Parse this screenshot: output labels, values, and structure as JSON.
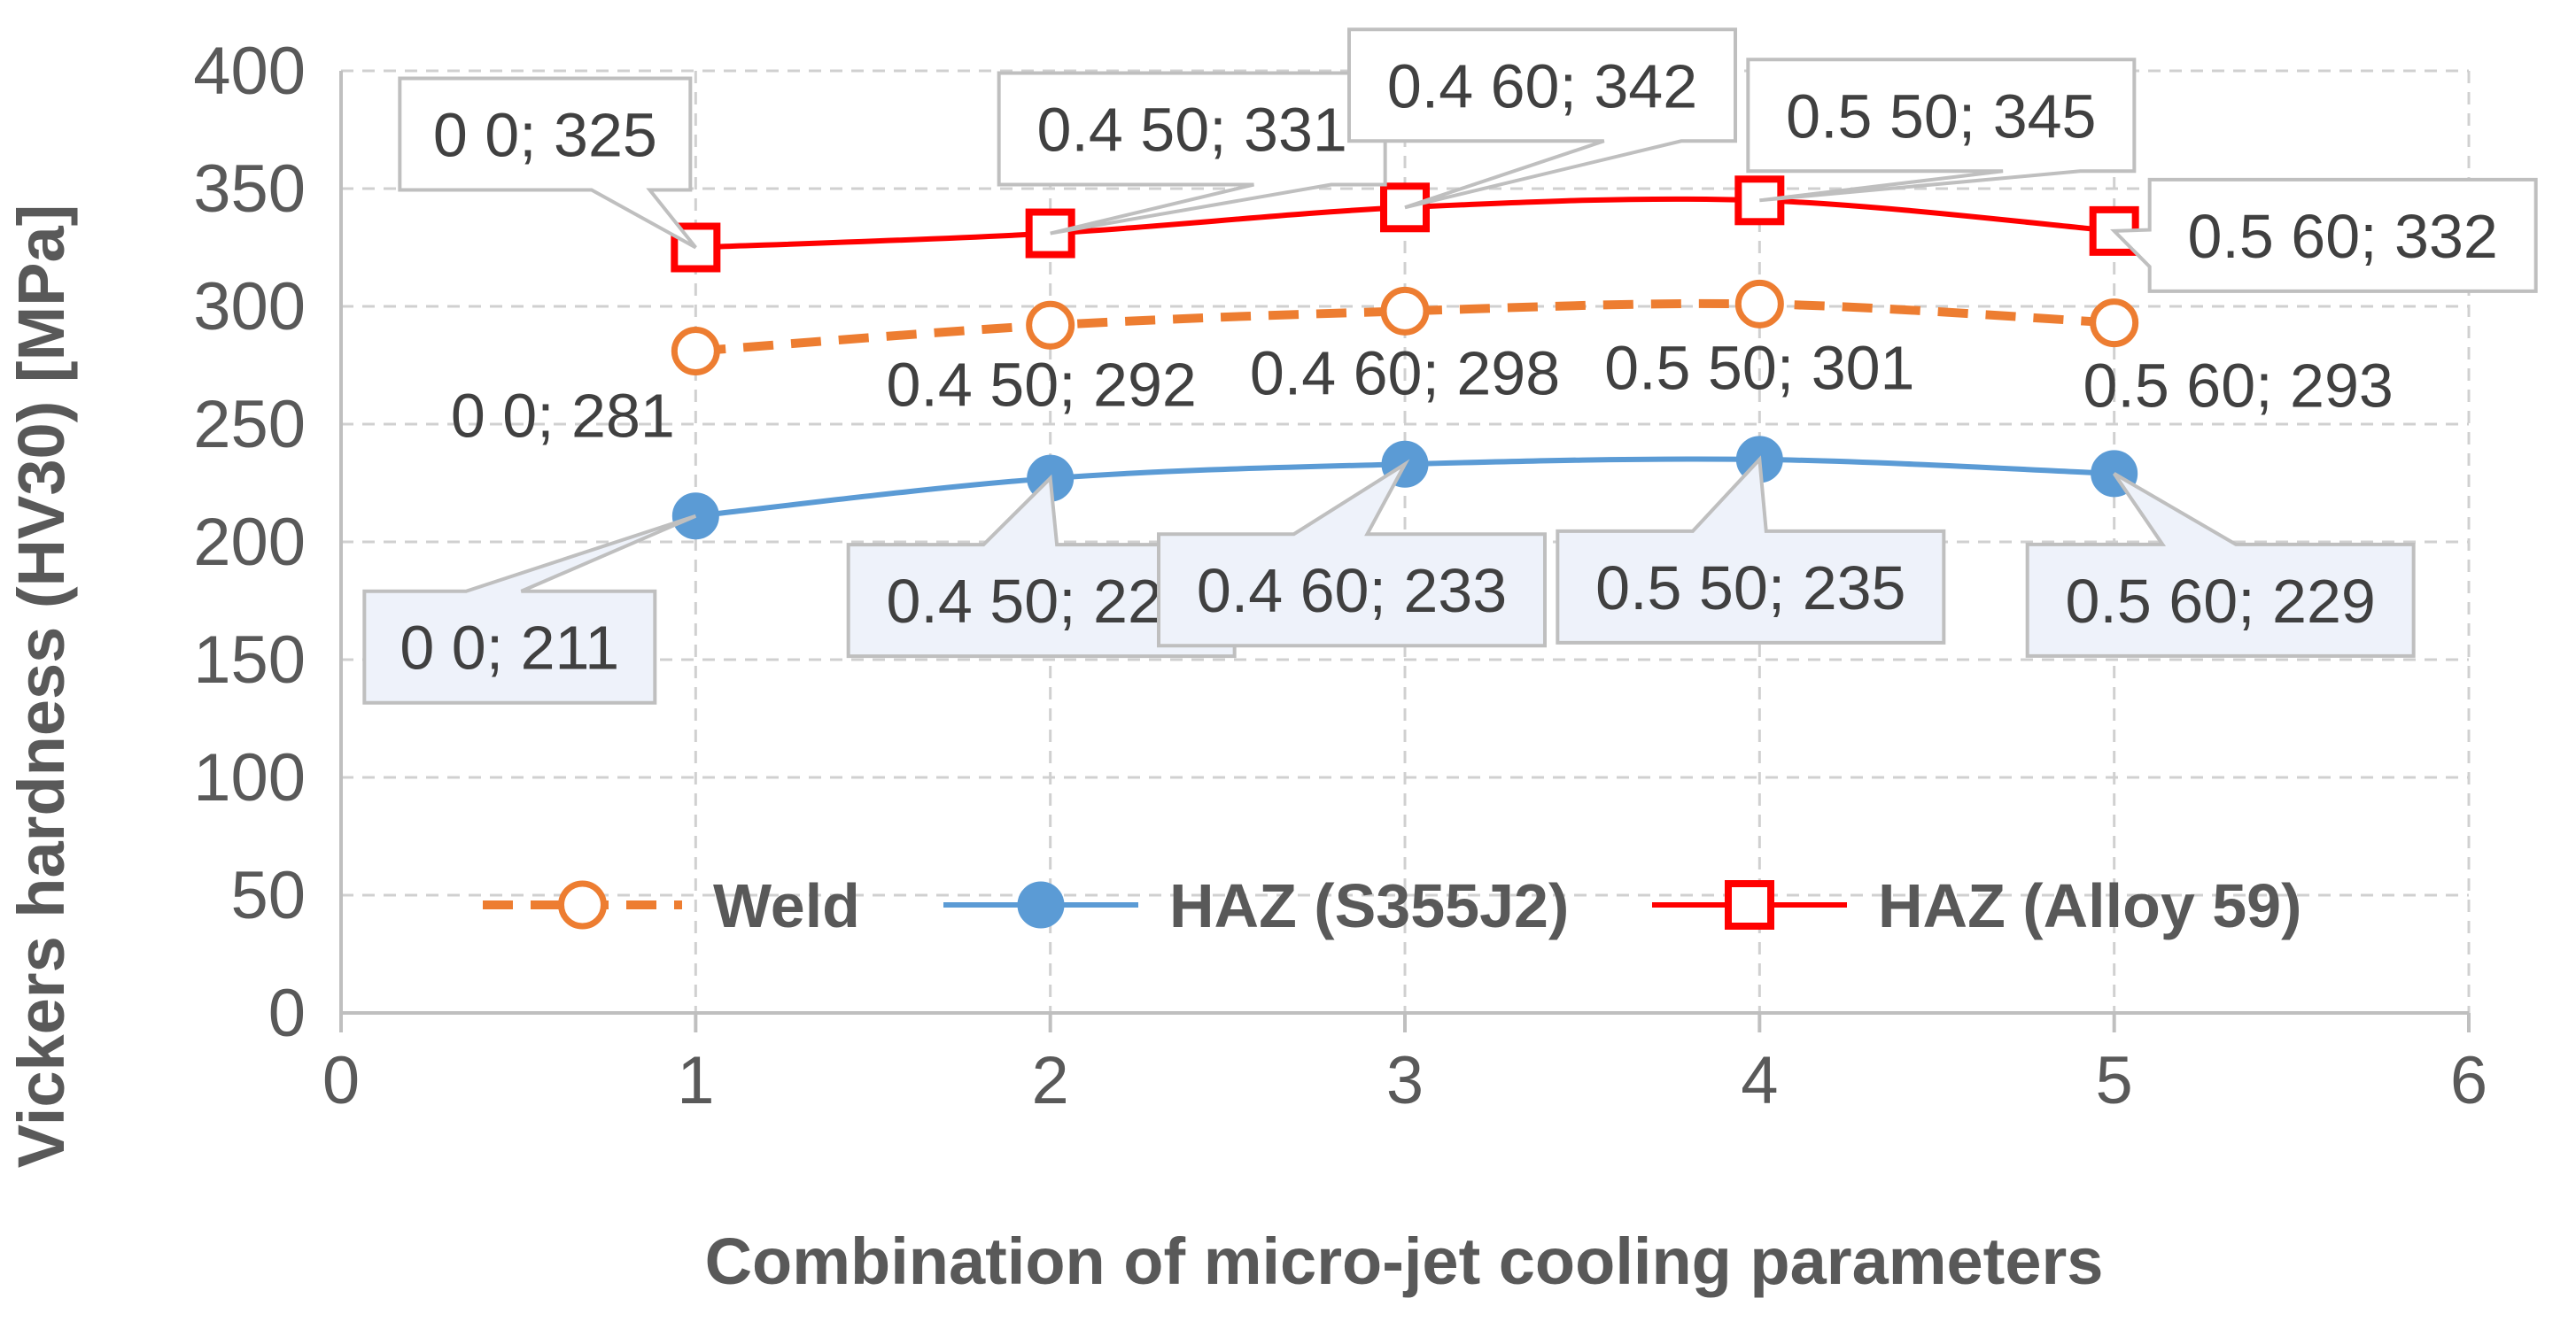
{
  "chart_data": {
    "type": "scatter",
    "xlabel": "Combination of micro-jet cooling parameters",
    "ylabel": "Vickers hardness (HV30)  [MPa]",
    "xlim": [
      0,
      6
    ],
    "ylim": [
      0,
      400
    ],
    "x_ticks": [
      "0",
      "1",
      "2",
      "3",
      "4",
      "5",
      "6"
    ],
    "y_ticks": [
      "0",
      "50",
      "100",
      "150",
      "200",
      "250",
      "300",
      "350",
      "400"
    ],
    "grid": true,
    "legend_position": "inside-bottom",
    "series": [
      {
        "name": "Weld",
        "color": "#ED7D31",
        "line_style": "dashed",
        "marker": "open-circle",
        "x": [
          1,
          2,
          3,
          4,
          5
        ],
        "y": [
          281,
          292,
          298,
          301,
          293
        ],
        "labels": [
          "0 0; 281",
          "0.4 50; 292",
          "0.4 60; 298",
          "0.5 50; 301",
          "0.5 60; 293"
        ]
      },
      {
        "name": "HAZ (S355J2)",
        "color": "#5B9BD5",
        "line_style": "solid",
        "marker": "filled-circle",
        "x": [
          1,
          2,
          3,
          4,
          5
        ],
        "y": [
          211,
          227,
          233,
          235,
          229
        ],
        "labels": [
          "0 0; 211",
          "0.4 50; 227",
          "0.4 60; 233",
          "0.5 50; 235",
          "0.5 60; 229"
        ]
      },
      {
        "name": "HAZ (Alloy 59)",
        "color": "#FF0000",
        "line_style": "solid",
        "marker": "open-square",
        "x": [
          1,
          2,
          3,
          4,
          5
        ],
        "y": [
          325,
          331,
          342,
          345,
          332
        ],
        "labels": [
          "0 0; 325",
          "0.4 50; 331",
          "0.4 60; 342",
          "0.5 50; 345",
          "0.5 60; 332"
        ]
      }
    ]
  }
}
